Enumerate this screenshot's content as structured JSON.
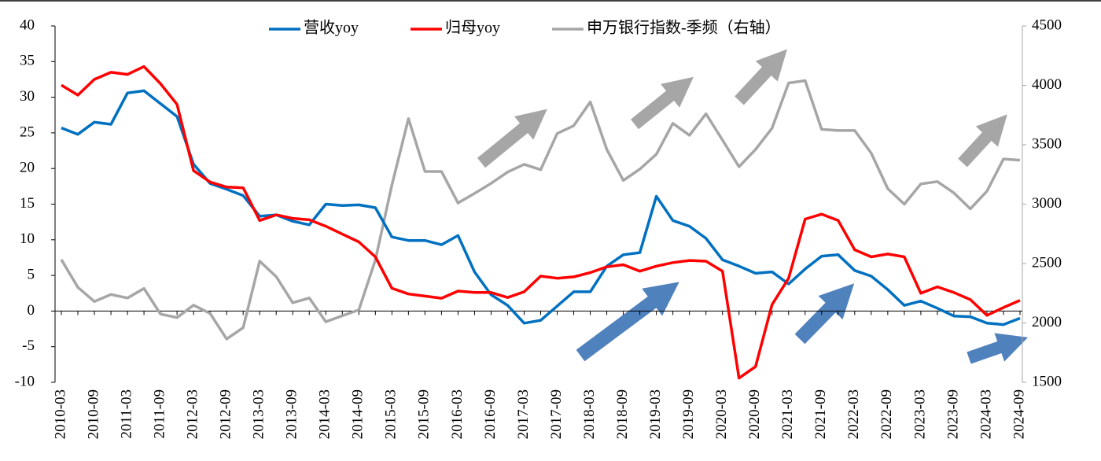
{
  "chart_data": {
    "type": "line",
    "categories": [
      "2010-03",
      null,
      "2010-09",
      null,
      "2011-03",
      null,
      "2011-09",
      null,
      "2012-03",
      null,
      "2012-09",
      null,
      "2013-03",
      null,
      "2013-09",
      null,
      "2014-03",
      null,
      "2014-09",
      null,
      "2015-03",
      null,
      "2015-09",
      null,
      "2016-03",
      null,
      "2016-09",
      null,
      "2017-03",
      null,
      "2017-09",
      null,
      "2018-03",
      null,
      "2018-09",
      null,
      "2019-03",
      null,
      "2019-09",
      null,
      "2020-03",
      null,
      "2020-09",
      null,
      "2021-03",
      null,
      "2021-09",
      null,
      "2022-03",
      null,
      "2022-09",
      null,
      "2023-03",
      null,
      "2023-09",
      null,
      "2024-03",
      null,
      "2024-09"
    ],
    "series": [
      {
        "name": "营收yoy",
        "color": "#0070c0",
        "values": [
          25.7,
          24.8,
          26.5,
          26.2,
          30.6,
          30.9,
          29.1,
          27.3,
          20.6,
          17.9,
          17.1,
          16.2,
          13.3,
          13.5,
          12.6,
          12.1,
          15.0,
          14.8,
          14.9,
          14.5,
          10.4,
          9.9,
          9.9,
          9.3,
          10.6,
          5.5,
          2.3,
          0.8,
          -1.7,
          -1.3,
          0.7,
          2.7,
          2.7,
          6.3,
          7.9,
          8.2,
          16.1,
          12.7,
          11.9,
          10.2,
          7.2,
          6.3,
          5.3,
          5.5,
          3.8,
          5.9,
          7.7,
          7.9,
          5.7,
          4.9,
          3.0,
          0.8,
          1.4,
          0.4,
          -0.7,
          -0.8,
          -1.7,
          -1.9,
          -1.0
        ]
      },
      {
        "name": "归母yoy",
        "color": "#ff0000",
        "values": [
          31.7,
          30.3,
          32.5,
          33.5,
          33.2,
          34.3,
          31.9,
          29.0,
          19.7,
          18.1,
          17.4,
          17.3,
          12.7,
          13.5,
          13.0,
          12.8,
          11.9,
          10.8,
          9.7,
          7.6,
          3.2,
          2.4,
          2.1,
          1.8,
          2.8,
          2.6,
          2.6,
          1.9,
          2.7,
          4.9,
          4.6,
          4.8,
          5.4,
          6.2,
          6.5,
          5.6,
          6.3,
          6.8,
          7.1,
          7.0,
          5.6,
          -9.4,
          -7.8,
          0.9,
          4.6,
          12.9,
          13.6,
          12.7,
          8.6,
          7.6,
          8.0,
          7.6,
          2.5,
          3.4,
          2.6,
          1.6,
          -0.6,
          0.5,
          1.5
        ]
      },
      {
        "name": "申万银行指数-季频（右轴）",
        "color": "#a6a6a6",
        "axis": "y2",
        "values": [
          2533,
          2300,
          2180,
          2240,
          2210,
          2290,
          2075,
          2045,
          2150,
          2080,
          1865,
          1960,
          2520,
          2390,
          2170,
          2210,
          2010,
          2060,
          2110,
          2530,
          3160,
          3720,
          3275,
          3275,
          3010,
          3090,
          3175,
          3270,
          3335,
          3290,
          3595,
          3660,
          3860,
          3460,
          3200,
          3295,
          3420,
          3680,
          3580,
          3760,
          3540,
          3315,
          3460,
          3640,
          4020,
          4040,
          3630,
          3620,
          3620,
          3430,
          3130,
          3000,
          3170,
          3190,
          3095,
          2960,
          3110,
          3380,
          3370
        ]
      }
    ],
    "ylim": [
      -10,
      40
    ],
    "yticks": [
      -10,
      -5,
      0,
      5,
      10,
      15,
      20,
      25,
      30,
      35,
      40
    ],
    "y2lim": [
      1500,
      4500
    ],
    "y2ticks": [
      1500,
      2000,
      2500,
      3000,
      3500,
      4000,
      4500
    ],
    "legend": "top"
  }
}
